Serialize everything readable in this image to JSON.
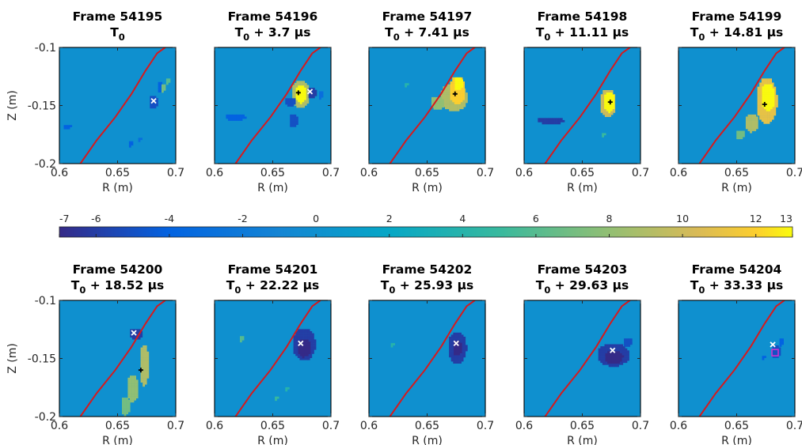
{
  "chart_data": {
    "type": "heatmap",
    "colormap": "parula",
    "colorbar": {
      "orientation": "horizontal",
      "placement": "between-rows",
      "range": [
        -7,
        13
      ],
      "ticks": [
        {
          "value": -7,
          "label": "-7"
        },
        {
          "value": -6,
          "label": "-6"
        },
        {
          "value": -4,
          "label": "-4"
        },
        {
          "value": -2,
          "label": "-2"
        },
        {
          "value": 0,
          "label": "0"
        },
        {
          "value": 2,
          "label": "2"
        },
        {
          "value": 4,
          "label": "4"
        },
        {
          "value": 6,
          "label": "6"
        },
        {
          "value": 8,
          "label": "8"
        },
        {
          "value": 10,
          "label": "10"
        },
        {
          "value": 12,
          "label": "12"
        },
        {
          "value": 13,
          "label": "13"
        }
      ]
    },
    "background_value": 0,
    "xlim": [
      0.6,
      0.7
    ],
    "ylim": [
      -0.2,
      -0.1
    ],
    "xlabel": "R (m)",
    "ylabel": "Z (m)",
    "xticks": [
      {
        "value": 0.6,
        "label": "0.6"
      },
      {
        "value": 0.65,
        "label": "0.65"
      },
      {
        "value": 0.7,
        "label": "0.7"
      }
    ],
    "yticks": [
      {
        "value": -0.1,
        "label": "-0.1"
      },
      {
        "value": -0.15,
        "label": "-0.15"
      },
      {
        "value": -0.2,
        "label": "-0.2"
      }
    ],
    "separatrix": {
      "color": "#d7191c",
      "R": [
        0.618,
        0.632,
        0.648,
        0.662,
        0.674,
        0.684,
        0.691
      ],
      "Z": [
        -0.2,
        -0.18,
        -0.16,
        -0.14,
        -0.12,
        -0.105,
        -0.1
      ]
    },
    "panels": [
      {
        "frame": "Frame 54195",
        "time": [
          "T",
          "0",
          ""
        ],
        "markers": [
          {
            "type": "x",
            "color": "#ffffff",
            "R": 0.681,
            "Z": -0.146
          }
        ],
        "blobs": [
          {
            "R": 0.68,
            "Z": -0.146,
            "rR": 0.004,
            "rZ": 0.006,
            "value": -5
          },
          {
            "R": 0.686,
            "Z": -0.133,
            "rR": 0.003,
            "rZ": 0.005,
            "value": -4
          },
          {
            "R": 0.688,
            "Z": -0.134,
            "rR": 0.002,
            "rZ": 0.004,
            "value": 7
          },
          {
            "R": 0.692,
            "Z": -0.128,
            "rR": 0.002,
            "rZ": 0.003,
            "value": 6
          },
          {
            "R": 0.606,
            "Z": -0.167,
            "rR": 0.004,
            "rZ": 0.002,
            "value": -4
          },
          {
            "R": 0.66,
            "Z": -0.182,
            "rR": 0.002,
            "rZ": 0.003,
            "value": -4
          },
          {
            "R": 0.668,
            "Z": -0.178,
            "rR": 0.002,
            "rZ": 0.002,
            "value": -3
          }
        ]
      },
      {
        "frame": "Frame 54196",
        "time": [
          "T",
          "0",
          " + 3.7 μs"
        ],
        "markers": [
          {
            "type": "plus",
            "color": "#000000",
            "R": 0.672,
            "Z": -0.139
          },
          {
            "type": "x",
            "color": "#ffffff",
            "R": 0.682,
            "Z": -0.138
          }
        ],
        "blobs": [
          {
            "R": 0.673,
            "Z": -0.139,
            "rR": 0.008,
            "rZ": 0.012,
            "value": 9
          },
          {
            "R": 0.673,
            "Z": -0.139,
            "rR": 0.005,
            "rZ": 0.008,
            "value": 13
          },
          {
            "R": 0.683,
            "Z": -0.138,
            "rR": 0.004,
            "rZ": 0.005,
            "value": -6
          },
          {
            "R": 0.69,
            "Z": -0.14,
            "rR": 0.002,
            "rZ": 0.004,
            "value": -3
          },
          {
            "R": 0.664,
            "Z": -0.146,
            "rR": 0.005,
            "rZ": 0.004,
            "value": -5
          },
          {
            "R": 0.667,
            "Z": -0.162,
            "rR": 0.004,
            "rZ": 0.006,
            "value": -5
          },
          {
            "R": 0.617,
            "Z": -0.159,
            "rR": 0.009,
            "rZ": 0.003,
            "value": -4
          }
        ]
      },
      {
        "frame": "Frame 54197",
        "time": [
          "T",
          "0",
          " + 7.41 μs"
        ],
        "markers": [
          {
            "type": "plus",
            "color": "#000000",
            "R": 0.674,
            "Z": -0.14
          }
        ],
        "blobs": [
          {
            "R": 0.672,
            "Z": -0.142,
            "rR": 0.012,
            "rZ": 0.012,
            "value": 9
          },
          {
            "R": 0.675,
            "Z": -0.136,
            "rR": 0.007,
            "rZ": 0.012,
            "value": 12
          },
          {
            "R": 0.658,
            "Z": -0.147,
            "rR": 0.006,
            "rZ": 0.006,
            "value": 8
          },
          {
            "R": 0.676,
            "Z": -0.13,
            "rR": 0.004,
            "rZ": 0.006,
            "value": 13
          },
          {
            "R": 0.631,
            "Z": -0.131,
            "rR": 0.002,
            "rZ": 0.002,
            "value": 4
          }
        ]
      },
      {
        "frame": "Frame 54198",
        "time": [
          "T",
          "0",
          " + 11.11 μs"
        ],
        "markers": [
          {
            "type": "plus",
            "color": "#000000",
            "R": 0.674,
            "Z": -0.147
          }
        ],
        "blobs": [
          {
            "R": 0.671,
            "Z": -0.147,
            "rR": 0.007,
            "rZ": 0.012,
            "value": 10
          },
          {
            "R": 0.672,
            "Z": -0.146,
            "rR": 0.005,
            "rZ": 0.009,
            "value": 13
          },
          {
            "R": 0.622,
            "Z": -0.162,
            "rR": 0.012,
            "rZ": 0.003,
            "value": -6
          },
          {
            "R": 0.667,
            "Z": -0.174,
            "rR": 0.002,
            "rZ": 0.002,
            "value": 5
          }
        ]
      },
      {
        "frame": "Frame 54199",
        "time": [
          "T",
          "0",
          " + 14.81 μs"
        ],
        "markers": [
          {
            "type": "plus",
            "color": "#000000",
            "R": 0.674,
            "Z": -0.149
          }
        ],
        "blobs": [
          {
            "R": 0.675,
            "Z": -0.145,
            "rR": 0.009,
            "rZ": 0.02,
            "value": 11
          },
          {
            "R": 0.676,
            "Z": -0.142,
            "rR": 0.006,
            "rZ": 0.012,
            "value": 13
          },
          {
            "R": 0.662,
            "Z": -0.164,
            "rR": 0.006,
            "rZ": 0.008,
            "value": 9
          },
          {
            "R": 0.652,
            "Z": -0.174,
            "rR": 0.004,
            "rZ": 0.004,
            "value": 7
          }
        ]
      },
      {
        "frame": "Frame 54200",
        "time": [
          "T",
          "0",
          " + 18.52 μs"
        ],
        "markers": [
          {
            "type": "x",
            "color": "#ffffff",
            "R": 0.664,
            "Z": -0.128
          },
          {
            "type": "plus",
            "color": "#000000",
            "R": 0.67,
            "Z": -0.16
          }
        ],
        "blobs": [
          {
            "R": 0.665,
            "Z": -0.128,
            "rR": 0.006,
            "rZ": 0.005,
            "value": -6
          },
          {
            "R": 0.672,
            "Z": -0.155,
            "rR": 0.004,
            "rZ": 0.018,
            "value": 9
          },
          {
            "R": 0.662,
            "Z": -0.175,
            "rR": 0.005,
            "rZ": 0.012,
            "value": 8
          },
          {
            "R": 0.656,
            "Z": -0.19,
            "rR": 0.004,
            "rZ": 0.008,
            "value": 7
          }
        ]
      },
      {
        "frame": "Frame 54201",
        "time": [
          "T",
          "0",
          " + 22.22 μs"
        ],
        "markers": [
          {
            "type": "x",
            "color": "#ffffff",
            "R": 0.674,
            "Z": -0.137
          }
        ],
        "blobs": [
          {
            "R": 0.676,
            "Z": -0.137,
            "rR": 0.01,
            "rZ": 0.014,
            "value": -6
          },
          {
            "R": 0.676,
            "Z": -0.14,
            "rR": 0.006,
            "rZ": 0.008,
            "value": -7
          },
          {
            "R": 0.622,
            "Z": -0.132,
            "rR": 0.002,
            "rZ": 0.003,
            "value": 6
          },
          {
            "R": 0.661,
            "Z": -0.175,
            "rR": 0.002,
            "rZ": 0.002,
            "value": 4
          },
          {
            "R": 0.652,
            "Z": -0.183,
            "rR": 0.002,
            "rZ": 0.002,
            "value": 5
          }
        ]
      },
      {
        "frame": "Frame 54202",
        "time": [
          "T",
          "0",
          " + 25.93 μs"
        ],
        "markers": [
          {
            "type": "x",
            "color": "#ffffff",
            "R": 0.675,
            "Z": -0.137
          }
        ],
        "blobs": [
          {
            "R": 0.675,
            "Z": -0.14,
            "rR": 0.008,
            "rZ": 0.014,
            "value": -6
          },
          {
            "R": 0.675,
            "Z": -0.14,
            "rR": 0.004,
            "rZ": 0.007,
            "value": -7
          },
          {
            "R": 0.619,
            "Z": -0.137,
            "rR": 0.002,
            "rZ": 0.002,
            "value": 4
          }
        ]
      },
      {
        "frame": "Frame 54203",
        "time": [
          "T",
          "0",
          " + 29.63 μs"
        ],
        "markers": [
          {
            "type": "x",
            "color": "#ffffff",
            "R": 0.676,
            "Z": -0.143
          }
        ],
        "blobs": [
          {
            "R": 0.676,
            "Z": -0.146,
            "rR": 0.014,
            "rZ": 0.01,
            "value": -6
          },
          {
            "R": 0.676,
            "Z": -0.148,
            "rR": 0.008,
            "rZ": 0.006,
            "value": -7
          },
          {
            "R": 0.688,
            "Z": -0.135,
            "rR": 0.004,
            "rZ": 0.004,
            "value": -5
          }
        ]
      },
      {
        "frame": "Frame 54204",
        "time": [
          "T",
          "0",
          " + 33.33 μs"
        ],
        "markers": [
          {
            "type": "x",
            "color": "#ffffff",
            "R": 0.681,
            "Z": -0.138
          },
          {
            "type": "square",
            "color": "#cc33cc",
            "R": 0.683,
            "Z": -0.145
          }
        ],
        "blobs": [
          {
            "R": 0.683,
            "Z": -0.143,
            "rR": 0.004,
            "rZ": 0.006,
            "value": -5
          },
          {
            "R": 0.687,
            "Z": -0.135,
            "rR": 0.002,
            "rZ": 0.004,
            "value": -4
          },
          {
            "R": 0.672,
            "Z": -0.148,
            "rR": 0.002,
            "rZ": 0.002,
            "value": -4
          }
        ]
      }
    ]
  }
}
